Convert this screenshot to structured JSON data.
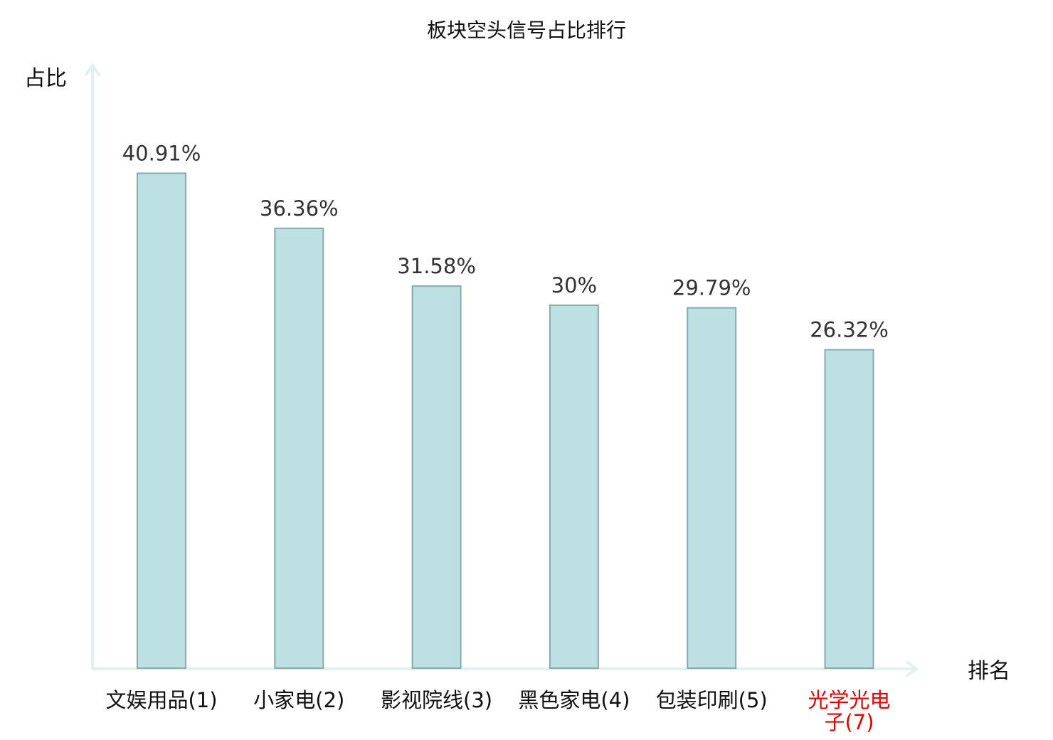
{
  "chart_data": {
    "type": "bar",
    "title": "板块空头信号占比排行",
    "ylabel": "占比",
    "xlabel": "排名",
    "categories": [
      {
        "name": "文娱用品",
        "rank": "(1)",
        "highlight": false
      },
      {
        "name": "小家电",
        "rank": "(2)",
        "highlight": false
      },
      {
        "name": "影视院线",
        "rank": "(3)",
        "highlight": false
      },
      {
        "name": "黑色家电",
        "rank": "(4)",
        "highlight": false
      },
      {
        "name": "包装印刷",
        "rank": "(5)",
        "highlight": false
      },
      {
        "name": "光学光电子",
        "rank": "(7)",
        "highlight": true
      }
    ],
    "values": [
      40.91,
      36.36,
      31.58,
      30,
      29.79,
      26.32
    ],
    "value_labels": [
      "40.91%",
      "36.36%",
      "31.58%",
      "30%",
      "29.79%",
      "26.32%"
    ],
    "ylim": [
      0,
      50
    ],
    "grid": false,
    "legend": "none",
    "colors": {
      "bar_fill": "#bde0e3",
      "bar_stroke": "#8aa9ab",
      "axis": "#e0f2ef",
      "highlight_text": "#e00000",
      "normal_text": "#111111"
    }
  }
}
